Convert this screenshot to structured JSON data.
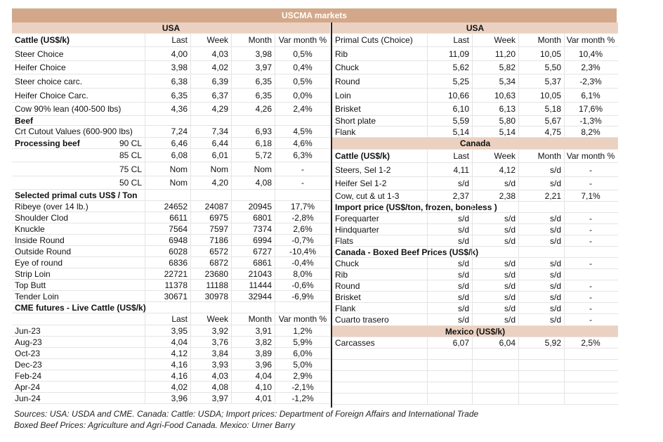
{
  "title": "USCMA markets",
  "left": {
    "band": "USA",
    "rows": [
      {
        "kind": "section",
        "label": "Cattle (US$/k)",
        "values": [
          "Last",
          "Week",
          "Month",
          "Var month %"
        ]
      },
      {
        "kind": "data",
        "label": "Steer Choice",
        "values": [
          "4,00",
          "4,03",
          "3,98",
          "0,5%"
        ]
      },
      {
        "kind": "data",
        "label": "Heifer Choice",
        "values": [
          "3,98",
          "4,02",
          "3,97",
          "0,4%"
        ]
      },
      {
        "kind": "data",
        "label": "Steer choice carc.",
        "values": [
          "6,38",
          "6,39",
          "6,35",
          "0,5%"
        ]
      },
      {
        "kind": "data",
        "label": "Heifer Choice Carc.",
        "values": [
          "6,35",
          "6,37",
          "6,35",
          "0,0%"
        ]
      },
      {
        "kind": "data",
        "label": "Cow 90% lean (400-500 lbs)",
        "values": [
          "4,36",
          "4,29",
          "4,26",
          "2,4%"
        ]
      },
      {
        "kind": "section",
        "label": "Beef",
        "values": [
          "",
          "",
          "",
          ""
        ]
      },
      {
        "kind": "data",
        "label": "Crt Cutout Values (600-900 lbs)",
        "values": [
          "7,24",
          "7,34",
          "6,93",
          "4,5%"
        ]
      },
      {
        "kind": "section",
        "label": "Processing beef",
        "sub": "90 CL",
        "values": [
          "6,46",
          "6,44",
          "6,18",
          "4,6%"
        ]
      },
      {
        "kind": "data",
        "label": "",
        "sub": "85 CL",
        "values": [
          "6,08",
          "6,01",
          "5,72",
          "6,3%"
        ]
      },
      {
        "kind": "data",
        "label": "",
        "sub": "75 CL",
        "values": [
          "Nom",
          "Nom",
          "Nom",
          "-"
        ]
      },
      {
        "kind": "data",
        "label": "",
        "sub": "50 CL",
        "values": [
          "Nom",
          "4,20",
          "4,08",
          "-"
        ]
      },
      {
        "kind": "section",
        "label": "Selected primal cuts US$ / Ton",
        "values": [
          "",
          "",
          "",
          ""
        ]
      },
      {
        "kind": "data",
        "label": "Ribeye (over 14 lb.)",
        "values": [
          "24652",
          "24087",
          "20945",
          "17,7%"
        ]
      },
      {
        "kind": "data",
        "label": "Shoulder Clod",
        "values": [
          "6611",
          "6975",
          "6801",
          "-2,8%"
        ]
      },
      {
        "kind": "data",
        "label": "Knuckle",
        "values": [
          "7564",
          "7597",
          "7374",
          "2,6%"
        ]
      },
      {
        "kind": "data",
        "label": "Inside Round",
        "values": [
          "6948",
          "7186",
          "6994",
          "-0,7%"
        ]
      },
      {
        "kind": "data",
        "label": "Outside Round",
        "values": [
          "6028",
          "6572",
          "6727",
          "-10,4%"
        ]
      },
      {
        "kind": "data",
        "label": "Eye of round",
        "values": [
          "6836",
          "6872",
          "6861",
          "-0,4%"
        ]
      },
      {
        "kind": "data",
        "label": "Strip Loin",
        "values": [
          "22721",
          "23680",
          "21043",
          "8,0%"
        ]
      },
      {
        "kind": "data",
        "label": "Top Butt",
        "values": [
          "11378",
          "11188",
          "11444",
          "-0,6%"
        ]
      },
      {
        "kind": "data",
        "label": "Tender Loin",
        "values": [
          "30671",
          "30978",
          "32944",
          "-6,9%"
        ]
      },
      {
        "kind": "section",
        "label": "CME futures - Live Cattle (US$/k)",
        "values": [
          "",
          "",
          "",
          ""
        ]
      },
      {
        "kind": "header",
        "label": "",
        "values": [
          "Last",
          "Week",
          "Month",
          "Var month %"
        ]
      },
      {
        "kind": "data",
        "label": "Jun-23",
        "values": [
          "3,95",
          "3,92",
          "3,91",
          "1,2%"
        ]
      },
      {
        "kind": "data",
        "label": "Aug-23",
        "values": [
          "4,04",
          "3,76",
          "3,82",
          "5,9%"
        ]
      },
      {
        "kind": "data",
        "label": "Oct-23",
        "values": [
          "4,12",
          "3,84",
          "3,89",
          "6,0%"
        ]
      },
      {
        "kind": "data",
        "label": "Dec-23",
        "values": [
          "4,16",
          "3,93",
          "3,96",
          "5,0%"
        ]
      },
      {
        "kind": "data",
        "label": "Feb-24",
        "values": [
          "4,16",
          "4,03",
          "4,04",
          "2,9%"
        ]
      },
      {
        "kind": "data",
        "label": "Apr-24",
        "values": [
          "4,02",
          "4,08",
          "4,10",
          "-2,1%"
        ]
      },
      {
        "kind": "data",
        "label": "Jun-24",
        "values": [
          "3,96",
          "3,97",
          "4,01",
          "-1,2%"
        ]
      }
    ]
  },
  "right": {
    "band": "USA",
    "rows": [
      {
        "kind": "header",
        "label": "Primal Cuts (Choice)",
        "values": [
          "Last",
          "Week",
          "Month",
          "Var month %"
        ]
      },
      {
        "kind": "data",
        "label": "Rib",
        "values": [
          "11,09",
          "11,20",
          "10,05",
          "10,4%"
        ]
      },
      {
        "kind": "data",
        "label": "Chuck",
        "values": [
          "5,62",
          "5,82",
          "5,50",
          "2,3%"
        ]
      },
      {
        "kind": "data",
        "label": "Round",
        "values": [
          "5,25",
          "5,34",
          "5,37",
          "-2,3%"
        ]
      },
      {
        "kind": "data",
        "label": "Loin",
        "values": [
          "10,66",
          "10,63",
          "10,05",
          "6,1%"
        ]
      },
      {
        "kind": "data",
        "label": "Brisket",
        "values": [
          "6,10",
          "6,13",
          "5,18",
          "17,6%"
        ]
      },
      {
        "kind": "data",
        "label": "Short plate",
        "values": [
          "5,59",
          "5,80",
          "5,67",
          "-1,3%"
        ]
      },
      {
        "kind": "data",
        "label": "Flank",
        "values": [
          "5,14",
          "5,14",
          "4,75",
          "8,2%"
        ]
      },
      {
        "kind": "band",
        "label": "Canada"
      },
      {
        "kind": "section",
        "label": "Cattle (US$/k)",
        "values": [
          "Last",
          "Week",
          "Month",
          "Var month %"
        ]
      },
      {
        "kind": "data",
        "label": "Steers, Sel 1-2",
        "values": [
          "4,11",
          "4,12",
          "s/d",
          "-"
        ]
      },
      {
        "kind": "data",
        "label": "Heifer Sel 1-2",
        "values": [
          "s/d",
          "s/d",
          "s/d",
          "-"
        ]
      },
      {
        "kind": "data",
        "label": "Cow, cut & ut 1-3",
        "values": [
          "2,37",
          "2,38",
          "2,21",
          "7,1%"
        ]
      },
      {
        "kind": "section",
        "label": "Import price (US$/ton, frozen, boneless )",
        "values": [
          "",
          "",
          "",
          ""
        ]
      },
      {
        "kind": "data",
        "label": "Forequarter",
        "values": [
          "s/d",
          "s/d",
          "s/d",
          "-"
        ]
      },
      {
        "kind": "data",
        "label": "Hindquarter",
        "values": [
          "s/d",
          "s/d",
          "s/d",
          "-"
        ]
      },
      {
        "kind": "data",
        "label": "Flats",
        "values": [
          "s/d",
          "s/d",
          "s/d",
          "-"
        ]
      },
      {
        "kind": "section",
        "label": "Canada - Boxed Beef Prices (US$/k)",
        "values": [
          "",
          "",
          "",
          ""
        ]
      },
      {
        "kind": "data",
        "label": "Chuck",
        "values": [
          "s/d",
          "s/d",
          "s/d",
          "-"
        ]
      },
      {
        "kind": "data",
        "label": "Rib",
        "values": [
          "s/d",
          "s/d",
          "s/d",
          ""
        ]
      },
      {
        "kind": "data",
        "label": "Round",
        "values": [
          "s/d",
          "s/d",
          "s/d",
          "-"
        ]
      },
      {
        "kind": "data",
        "label": "Brisket",
        "values": [
          "s/d",
          "s/d",
          "s/d",
          "-"
        ]
      },
      {
        "kind": "data",
        "label": "Flank",
        "values": [
          "s/d",
          "s/d",
          "s/d",
          "-"
        ]
      },
      {
        "kind": "data",
        "label": "Cuarto trasero",
        "values": [
          "s/d",
          "s/d",
          "s/d",
          "-"
        ]
      },
      {
        "kind": "band",
        "label": "Mexico (US$/k)"
      },
      {
        "kind": "data",
        "label": "Carcasses",
        "values": [
          "6,07",
          "6,04",
          "5,92",
          "2,5%"
        ]
      },
      {
        "kind": "data",
        "label": "",
        "values": [
          "",
          "",
          "",
          ""
        ]
      },
      {
        "kind": "data",
        "label": "",
        "values": [
          "",
          "",
          "",
          ""
        ]
      },
      {
        "kind": "data",
        "label": "",
        "values": [
          "",
          "",
          "",
          ""
        ]
      },
      {
        "kind": "data",
        "label": "",
        "values": [
          "",
          "",
          "",
          ""
        ]
      },
      {
        "kind": "data",
        "label": "",
        "values": [
          "",
          "",
          "",
          ""
        ]
      }
    ]
  },
  "notes": [
    "Sources: USA: USDA and CME. Canada: Cattle: USDA; Import prices: Department of Foreign Affairs and International Trade",
    "Boxed Beef Prices: Agriculture and Agri-Food Canada. Mexico: Urner Barry"
  ]
}
